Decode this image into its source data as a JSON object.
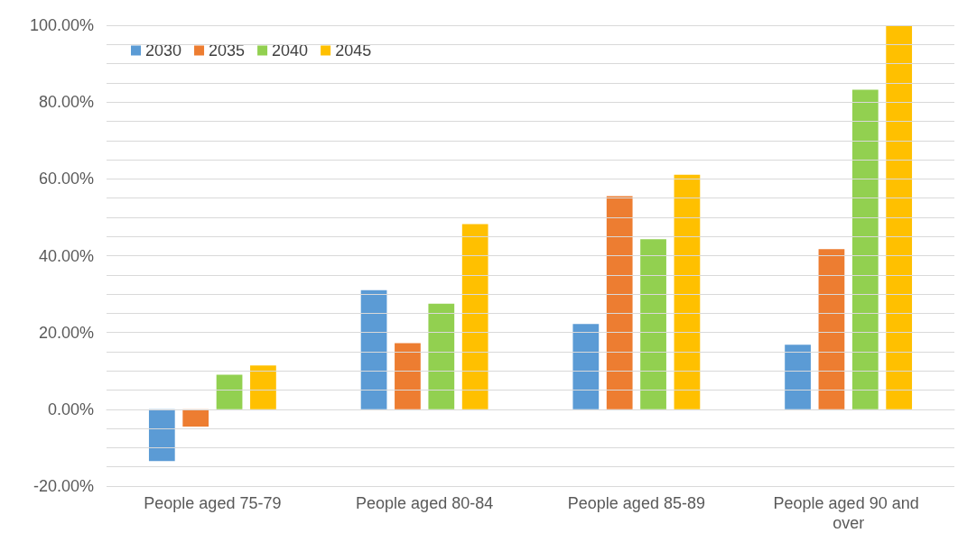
{
  "chart_data": {
    "type": "bar",
    "categories": [
      "People aged 75-79",
      "People aged 80-84",
      "People aged 85-89",
      "People aged 90 and over"
    ],
    "series": [
      {
        "name": "2030",
        "color": "#5b9bd5",
        "values": [
          -13.5,
          31.0,
          22.2,
          16.8
        ]
      },
      {
        "name": "2035",
        "color": "#ed7d31",
        "values": [
          -4.5,
          17.2,
          55.5,
          41.7
        ]
      },
      {
        "name": "2040",
        "color": "#92d050",
        "values": [
          9.0,
          27.5,
          44.3,
          83.2
        ]
      },
      {
        "name": "2045",
        "color": "#ffc000",
        "values": [
          11.4,
          48.2,
          61.1,
          100
        ]
      }
    ],
    "ylim": [
      -20,
      100
    ],
    "yticks": [
      {
        "value": -20,
        "label": "-20.00%"
      },
      {
        "value": -15,
        "label": null
      },
      {
        "value": -10,
        "label": null
      },
      {
        "value": -5,
        "label": null
      },
      {
        "value": 0,
        "label": "0.00%"
      },
      {
        "value": 5,
        "label": null
      },
      {
        "value": 10,
        "label": null
      },
      {
        "value": 15,
        "label": null
      },
      {
        "value": 20,
        "label": "20.00%"
      },
      {
        "value": 25,
        "label": null
      },
      {
        "value": 30,
        "label": null
      },
      {
        "value": 35,
        "label": null
      },
      {
        "value": 40,
        "label": "40.00%"
      },
      {
        "value": 45,
        "label": null
      },
      {
        "value": 50,
        "label": null
      },
      {
        "value": 55,
        "label": null
      },
      {
        "value": 60,
        "label": "60.00%"
      },
      {
        "value": 65,
        "label": null
      },
      {
        "value": 70,
        "label": null
      },
      {
        "value": 75,
        "label": null
      },
      {
        "value": 80,
        "label": "80.00%"
      },
      {
        "value": 85,
        "label": null
      },
      {
        "value": 90,
        "label": null
      },
      {
        "value": 95,
        "label": null
      },
      {
        "value": 100,
        "label": "100.00%"
      }
    ],
    "grid": "y",
    "legend": "top left"
  }
}
